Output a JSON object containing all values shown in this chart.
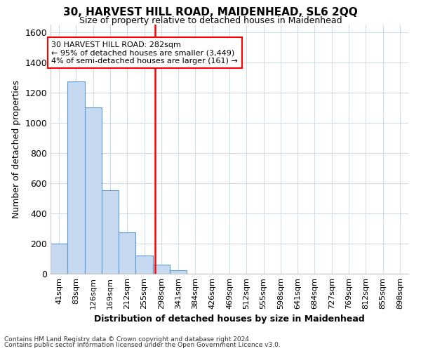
{
  "title": "30, HARVEST HILL ROAD, MAIDENHEAD, SL6 2QQ",
  "subtitle": "Size of property relative to detached houses in Maidenhead",
  "xlabel": "Distribution of detached houses by size in Maidenhead",
  "ylabel": "Number of detached properties",
  "bar_values": [
    200,
    1275,
    1100,
    555,
    275,
    120,
    60,
    25,
    0,
    0,
    0,
    0,
    0,
    0,
    0,
    0,
    0,
    0,
    0,
    0,
    0
  ],
  "bar_labels": [
    "41sqm",
    "83sqm",
    "126sqm",
    "169sqm",
    "212sqm",
    "255sqm",
    "298sqm",
    "341sqm",
    "384sqm",
    "426sqm",
    "469sqm",
    "512sqm",
    "555sqm",
    "598sqm",
    "641sqm",
    "684sqm",
    "727sqm",
    "769sqm",
    "812sqm",
    "855sqm",
    "898sqm"
  ],
  "bar_color": "#c6d9f0",
  "bar_edge_color": "#5b9bd5",
  "ylim": [
    0,
    1650
  ],
  "yticks": [
    0,
    200,
    400,
    600,
    800,
    1000,
    1200,
    1400,
    1600
  ],
  "annotation_title": "30 HARVEST HILL ROAD: 282sqm",
  "annotation_line1": "← 95% of detached houses are smaller (3,449)",
  "annotation_line2": "4% of semi-detached houses are larger (161) →",
  "footer_line1": "Contains HM Land Registry data © Crown copyright and database right 2024.",
  "footer_line2": "Contains public sector information licensed under the Open Government Licence v3.0.",
  "background_color": "#ffffff",
  "plot_background": "#ffffff",
  "grid_color": "#d0dce8"
}
